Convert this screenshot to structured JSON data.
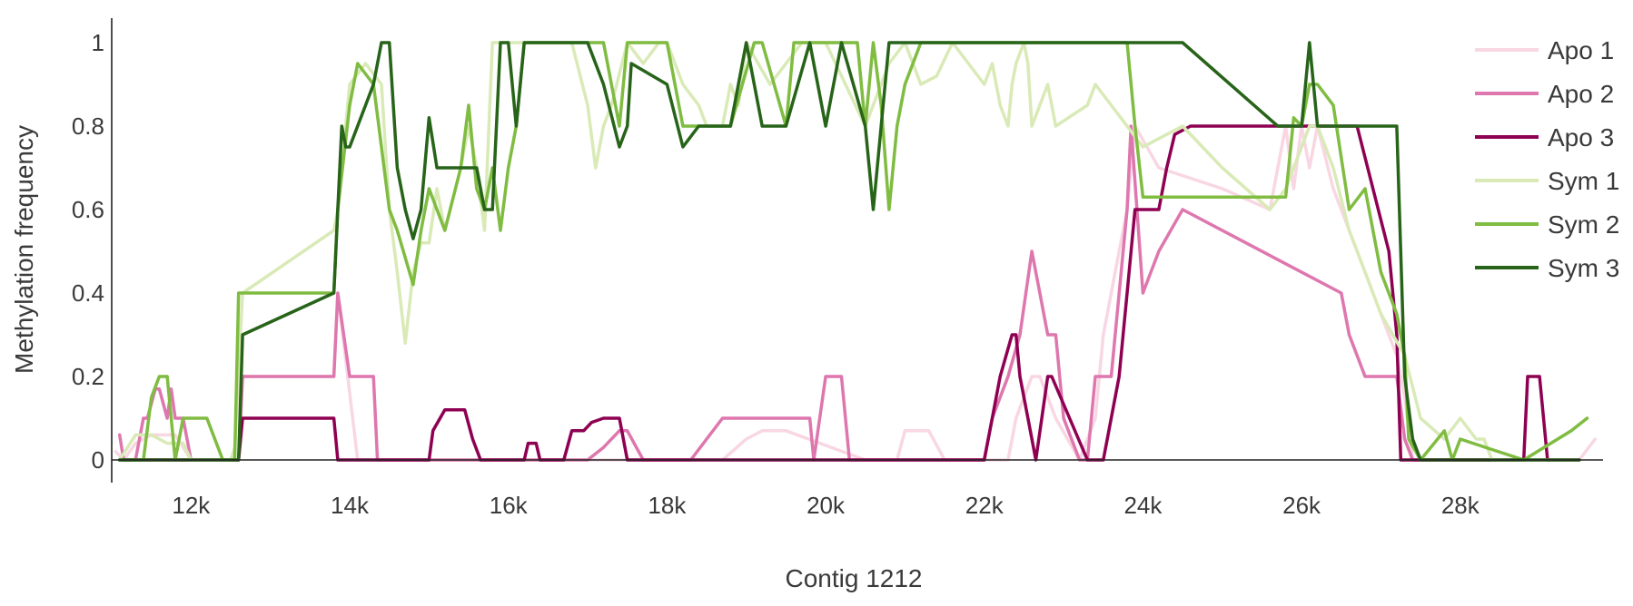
{
  "chart_data": {
    "type": "line",
    "xlabel": "Contig 1212",
    "ylabel": "Methylation frequency",
    "xlim": [
      11000,
      29800
    ],
    "ylim": [
      0,
      1
    ],
    "xticks": [
      12000,
      14000,
      16000,
      18000,
      20000,
      22000,
      24000,
      26000,
      28000
    ],
    "xtick_labels": [
      "12k",
      "14k",
      "16k",
      "18k",
      "20k",
      "22k",
      "24k",
      "26k",
      "28k"
    ],
    "yticks": [
      0,
      0.2,
      0.4,
      0.6,
      0.8,
      1
    ],
    "ytick_labels": [
      "0",
      "0.2",
      "0.4",
      "0.6",
      "0.8",
      "1"
    ],
    "grid": false,
    "legend_position": "top-right",
    "series": [
      {
        "name": "Apo 1",
        "color": "#f8d7e3",
        "x": [
          11050,
          11150,
          11300,
          11500,
          11800,
          12000,
          12600,
          12650,
          13800,
          13850,
          14050,
          14100,
          15000,
          16500,
          17500,
          18200,
          18300,
          18500,
          18700,
          19000,
          19200,
          19500,
          20500,
          20900,
          21000,
          21300,
          21500,
          22300,
          22400,
          22600,
          22700,
          22900,
          23200,
          23400,
          23500,
          23700,
          23800,
          23900,
          24200,
          25000,
          25600,
          25700,
          25800,
          25900,
          26000,
          26100,
          26200,
          26400,
          26500,
          26800,
          27000,
          27200,
          27300,
          27400,
          27500,
          28000,
          29500,
          29700
        ],
        "y": [
          0.02,
          0,
          0.04,
          0.06,
          0.06,
          0,
          0,
          0.2,
          0.2,
          0.4,
          0.08,
          0,
          0,
          0,
          0,
          0,
          0,
          0,
          0,
          0.05,
          0.07,
          0.07,
          0,
          0,
          0.07,
          0.07,
          0,
          0,
          0.1,
          0.2,
          0.2,
          0.1,
          0,
          0.1,
          0.3,
          0.5,
          0.6,
          0.8,
          0.7,
          0.65,
          0.6,
          0.7,
          0.8,
          0.65,
          0.8,
          0.7,
          0.8,
          0.65,
          0.6,
          0.45,
          0.35,
          0.25,
          0.15,
          0,
          0,
          0,
          0,
          0.05
        ]
      },
      {
        "name": "Apo 2",
        "color": "#de77ae",
        "x": [
          11100,
          11150,
          11300,
          11400,
          11450,
          11550,
          11600,
          11700,
          11750,
          11800,
          11900,
          12000,
          12600,
          12650,
          13800,
          13850,
          14000,
          14050,
          14300,
          14350,
          17000,
          17200,
          17400,
          17500,
          17700,
          18300,
          18700,
          19800,
          19850,
          20000,
          20200,
          20300,
          20500,
          22000,
          22100,
          22300,
          22450,
          22600,
          22700,
          22800,
          22900,
          23000,
          23100,
          23200,
          23300,
          23400,
          23600,
          23800,
          23850,
          24000,
          24200,
          24500,
          26500,
          26600,
          26800,
          27200,
          27300,
          27400,
          29500
        ],
        "y": [
          0.06,
          0,
          0,
          0.1,
          0.1,
          0.17,
          0.17,
          0.1,
          0.17,
          0.1,
          0.1,
          0,
          0,
          0.2,
          0.2,
          0.4,
          0.2,
          0.2,
          0.2,
          0,
          0,
          0.03,
          0.07,
          0.07,
          0,
          0,
          0.1,
          0.1,
          0,
          0.2,
          0.2,
          0,
          0,
          0,
          0.1,
          0.2,
          0.3,
          0.5,
          0.4,
          0.3,
          0.3,
          0.1,
          0.05,
          0,
          0,
          0.2,
          0.2,
          0.6,
          0.8,
          0.4,
          0.5,
          0.6,
          0.4,
          0.3,
          0.2,
          0.2,
          0.05,
          0,
          0
        ]
      },
      {
        "name": "Apo 3",
        "color": "#8e0152",
        "x": [
          11100,
          12600,
          12650,
          13800,
          13850,
          15000,
          15050,
          15200,
          15450,
          15550,
          15650,
          16200,
          16250,
          16350,
          16400,
          16700,
          16800,
          16950,
          17050,
          17200,
          17400,
          17500,
          22000,
          22100,
          22200,
          22350,
          22400,
          22450,
          22550,
          22650,
          22800,
          22850,
          23300,
          23350,
          23500,
          23700,
          23800,
          23900,
          24000,
          24200,
          24300,
          24400,
          24600,
          26700,
          26900,
          27100,
          27200,
          27250,
          27300,
          28800,
          28850,
          29000,
          29100,
          29500
        ],
        "y": [
          0,
          0,
          0.1,
          0.1,
          0,
          0,
          0.07,
          0.12,
          0.12,
          0.05,
          0,
          0,
          0.04,
          0.04,
          0,
          0,
          0.07,
          0.07,
          0.09,
          0.1,
          0.1,
          0,
          0,
          0.1,
          0.2,
          0.3,
          0.3,
          0.2,
          0.1,
          0,
          0.2,
          0.2,
          0,
          0,
          0,
          0.2,
          0.4,
          0.6,
          0.6,
          0.6,
          0.7,
          0.78,
          0.8,
          0.8,
          0.65,
          0.5,
          0.3,
          0,
          0,
          0,
          0.2,
          0.2,
          0,
          0
        ]
      },
      {
        "name": "Sym 1",
        "color": "#d9eab7",
        "x": [
          11100,
          11300,
          11500,
          11700,
          11900,
          12000,
          12500,
          12550,
          12650,
          13800,
          13850,
          14000,
          14200,
          14400,
          14500,
          14600,
          14700,
          14800,
          14900,
          15000,
          15100,
          15200,
          15400,
          15500,
          15600,
          15700,
          15800,
          15900,
          16100,
          16200,
          16600,
          16800,
          17000,
          17100,
          17200,
          17300,
          17500,
          17700,
          17900,
          18000,
          18200,
          18400,
          18500,
          18700,
          18800,
          18900,
          19000,
          19300,
          19500,
          19700,
          19900,
          20000,
          20500,
          20700,
          20800,
          21000,
          21200,
          21400,
          21600,
          21800,
          22000,
          22100,
          22200,
          22300,
          22350,
          22400,
          22500,
          22550,
          22600,
          22700,
          22800,
          22900,
          23300,
          23400,
          23600,
          23800,
          24000,
          24500,
          25000,
          25600,
          25800,
          25900,
          26000,
          26100,
          26200,
          26400,
          26600,
          26800,
          27000,
          27300,
          27500,
          27800,
          28000,
          28200,
          28300,
          28400,
          29500
        ],
        "y": [
          0,
          0.06,
          0.06,
          0.04,
          0.04,
          0,
          0,
          0.03,
          0.4,
          0.55,
          0.6,
          0.9,
          0.95,
          0.9,
          0.6,
          0.45,
          0.28,
          0.45,
          0.52,
          0.52,
          0.65,
          0.55,
          0.7,
          0.8,
          0.7,
          0.55,
          1,
          1,
          1,
          1,
          1,
          1,
          0.85,
          0.7,
          0.8,
          0.85,
          1,
          0.95,
          1,
          1,
          0.9,
          0.85,
          0.8,
          0.8,
          0.9,
          0.85,
          1,
          0.9,
          0.95,
          1,
          1,
          1,
          0.8,
          0.9,
          0.95,
          1,
          0.9,
          0.92,
          1,
          0.95,
          0.9,
          0.95,
          0.85,
          0.8,
          0.9,
          0.95,
          1,
          0.95,
          0.8,
          0.85,
          0.9,
          0.8,
          0.85,
          0.9,
          0.85,
          0.8,
          0.75,
          0.8,
          0.7,
          0.6,
          0.65,
          0.7,
          0.75,
          0.8,
          0.8,
          0.7,
          0.55,
          0.45,
          0.35,
          0.25,
          0.1,
          0.05,
          0.1,
          0.05,
          0.05,
          0,
          0
        ]
      },
      {
        "name": "Sym 2",
        "color": "#7fbc41",
        "x": [
          11100,
          11400,
          11500,
          11600,
          11700,
          11800,
          11900,
          12000,
          12200,
          12400,
          12550,
          12600,
          13800,
          13850,
          14000,
          14100,
          14300,
          14400,
          14500,
          14600,
          14800,
          14900,
          15000,
          15200,
          15400,
          15500,
          15600,
          15700,
          15800,
          15900,
          16000,
          16100,
          16200,
          16600,
          17000,
          17200,
          17400,
          17500,
          18000,
          18200,
          18400,
          18800,
          19100,
          19200,
          19500,
          19600,
          20000,
          20400,
          20500,
          20600,
          20700,
          20800,
          20900,
          21000,
          21200,
          21500,
          22000,
          23000,
          23800,
          23900,
          24000,
          25000,
          25400,
          25800,
          25900,
          26000,
          26100,
          26200,
          26400,
          26600,
          26800,
          27000,
          27200,
          27300,
          27350,
          27500,
          27800,
          27900,
          28000,
          28800,
          29400,
          29600
        ],
        "y": [
          0,
          0,
          0.15,
          0.2,
          0.2,
          0,
          0.1,
          0.1,
          0.1,
          0,
          0,
          0.4,
          0.4,
          0.6,
          0.85,
          0.95,
          0.9,
          0.75,
          0.6,
          0.55,
          0.42,
          0.55,
          0.65,
          0.55,
          0.7,
          0.85,
          0.65,
          0.6,
          0.7,
          0.55,
          0.7,
          0.8,
          1,
          1,
          1,
          1,
          0.8,
          1,
          1,
          0.8,
          0.8,
          0.8,
          1,
          1,
          0.8,
          1,
          1,
          1,
          0.8,
          1,
          0.85,
          0.6,
          0.8,
          0.9,
          1,
          1,
          1,
          1,
          1,
          0.8,
          0.63,
          0.63,
          0.63,
          0.63,
          0.82,
          0.8,
          0.9,
          0.9,
          0.85,
          0.6,
          0.65,
          0.45,
          0.35,
          0.25,
          0.05,
          0,
          0.07,
          0,
          0.05,
          0,
          0.07,
          0.1
        ]
      },
      {
        "name": "Sym 3",
        "color": "#276419",
        "x": [
          11100,
          12600,
          12650,
          13800,
          13850,
          13900,
          13950,
          14000,
          14200,
          14300,
          14400,
          14500,
          14600,
          14700,
          14800,
          14900,
          15000,
          15100,
          15200,
          15400,
          15500,
          15600,
          15700,
          15800,
          15900,
          16000,
          16100,
          16200,
          16300,
          16500,
          17000,
          17200,
          17400,
          17500,
          17550,
          18000,
          18200,
          18400,
          18800,
          19000,
          19200,
          19500,
          19800,
          20000,
          20200,
          20500,
          20600,
          20700,
          20800,
          20900,
          21000,
          23000,
          24500,
          25700,
          26000,
          26100,
          26200,
          26300,
          26400,
          26800,
          27000,
          27200,
          27300,
          27400,
          27500,
          29500
        ],
        "y": [
          0,
          0,
          0.3,
          0.4,
          0.6,
          0.8,
          0.75,
          0.75,
          0.85,
          0.9,
          1,
          1,
          0.7,
          0.6,
          0.53,
          0.6,
          0.82,
          0.7,
          0.7,
          0.7,
          0.7,
          0.7,
          0.6,
          0.6,
          1,
          1,
          0.8,
          1,
          1,
          1,
          1,
          0.9,
          0.75,
          0.8,
          0.95,
          0.9,
          0.75,
          0.8,
          0.8,
          1,
          0.8,
          0.8,
          1,
          0.8,
          1,
          0.8,
          0.6,
          0.8,
          1,
          1,
          1,
          1,
          1,
          0.8,
          0.8,
          1,
          0.8,
          0.8,
          0.8,
          0.8,
          0.8,
          0.8,
          0.2,
          0.05,
          0,
          0
        ]
      }
    ]
  }
}
